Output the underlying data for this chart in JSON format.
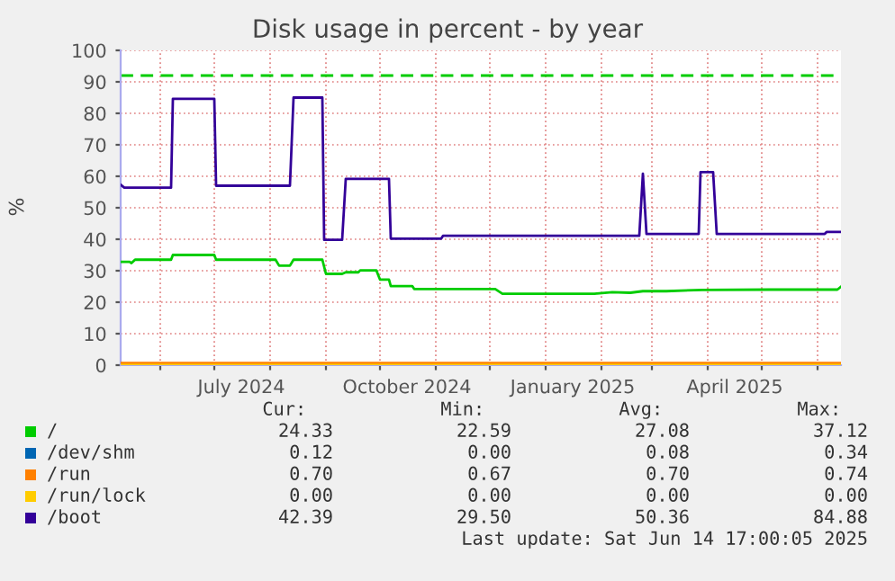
{
  "chart_data": {
    "type": "line",
    "title": "Disk usage in percent - by year",
    "ylabel": "%",
    "xlim": [
      "2024-05-10",
      "2025-06-14"
    ],
    "xticks": [
      {
        "value": "2024-06-01",
        "label": null
      },
      {
        "value": "2024-07-01",
        "label": null
      },
      {
        "value": "2024-07-16",
        "label": "July 2024"
      },
      {
        "value": "2024-08-01",
        "label": null
      },
      {
        "value": "2024-09-01",
        "label": null
      },
      {
        "value": "2024-10-01",
        "label": null
      },
      {
        "value": "2024-10-16",
        "label": "October 2024"
      },
      {
        "value": "2024-11-01",
        "label": null
      },
      {
        "value": "2024-12-01",
        "label": null
      },
      {
        "value": "2025-01-01",
        "label": null
      },
      {
        "value": "2025-01-16",
        "label": "January 2025"
      },
      {
        "value": "2025-02-01",
        "label": null
      },
      {
        "value": "2025-03-01",
        "label": null
      },
      {
        "value": "2025-04-01",
        "label": null
      },
      {
        "value": "2025-04-16",
        "label": "April 2025"
      },
      {
        "value": "2025-05-01",
        "label": null
      },
      {
        "value": "2025-06-01",
        "label": null
      }
    ],
    "ylim": [
      0,
      100
    ],
    "yticks": [
      0,
      10,
      20,
      30,
      40,
      50,
      60,
      70,
      80,
      90,
      100
    ],
    "grid": true,
    "legend": "bottom",
    "marker": "none",
    "line_style": "solid",
    "series": [
      {
        "name": "/",
        "color": "#00cc00",
        "x": [
          "2024-05-10",
          "2024-05-15",
          "2024-05-16",
          "2024-05-18",
          "2024-06-07",
          "2024-06-08",
          "2024-07-01",
          "2024-07-02",
          "2024-08-04",
          "2024-08-06",
          "2024-08-12",
          "2024-08-14",
          "2024-08-30",
          "2024-09-01",
          "2024-09-10",
          "2024-09-12",
          "2024-09-19",
          "2024-09-20",
          "2024-09-29",
          "2024-10-01",
          "2024-10-06",
          "2024-10-07",
          "2024-10-19",
          "2024-10-20",
          "2024-12-04",
          "2024-12-08",
          "2025-01-28",
          "2025-02-07",
          "2025-02-17",
          "2025-02-24",
          "2025-03-09",
          "2025-03-29",
          "2025-05-05",
          "2025-06-12",
          "2025-06-14"
        ],
        "values": [
          32.8,
          32.8,
          32.4,
          33.5,
          33.5,
          35.0,
          35.0,
          33.5,
          33.5,
          31.6,
          31.6,
          33.5,
          33.5,
          29.0,
          29.0,
          29.5,
          29.5,
          30.1,
          30.1,
          27.2,
          27.2,
          25.1,
          25.1,
          24.2,
          24.2,
          22.7,
          22.7,
          23.2,
          23.0,
          23.5,
          23.5,
          23.9,
          24.0,
          24.0,
          24.9
        ]
      },
      {
        "name": "/dev/shm",
        "color": "#0066b3"
      },
      {
        "name": "/run",
        "color": "#ff8000",
        "x": [
          "2024-05-10",
          "2025-06-14"
        ],
        "values": [
          0.7,
          0.7
        ]
      },
      {
        "name": "/run/lock",
        "color": "#ffcc00",
        "x": [
          "2024-05-10",
          "2025-06-14"
        ],
        "values": [
          0,
          0
        ]
      },
      {
        "name": "/boot",
        "color": "#330099",
        "x": [
          "2024-05-10",
          "2024-05-12",
          "2024-06-07",
          "2024-06-08",
          "2024-07-01",
          "2024-07-02",
          "2024-08-12",
          "2024-08-14",
          "2024-08-30",
          "2024-08-31",
          "2024-09-10",
          "2024-09-12",
          "2024-10-06",
          "2024-10-07",
          "2024-11-04",
          "2024-11-05",
          "2025-02-22",
          "2025-02-24",
          "2025-02-26",
          "2025-03-27",
          "2025-03-28",
          "2025-04-04",
          "2025-04-06",
          "2025-06-05",
          "2025-06-06",
          "2025-06-14"
        ],
        "values": [
          57.3,
          56.4,
          56.4,
          84.6,
          84.6,
          57.0,
          57.0,
          85.0,
          85.0,
          39.8,
          39.8,
          59.2,
          59.2,
          40.2,
          40.2,
          41.1,
          41.1,
          60.8,
          41.7,
          41.7,
          61.3,
          61.3,
          41.7,
          41.7,
          42.3,
          42.3
        ]
      }
    ],
    "ref_lines": [
      {
        "axis": "y",
        "value": 92,
        "label": null,
        "color": "#00cc00",
        "line_style": "dashed"
      }
    ],
    "annotations": [
      "Cur:",
      "Min:",
      "Avg:",
      "Max:",
      "24.33",
      "22.59",
      "27.08",
      "37.12",
      "0.12",
      "0.00",
      "0.08",
      "0.34",
      "0.70",
      "0.67",
      "0.70",
      "0.74",
      "0.00",
      "0.00",
      "0.00",
      "0.00",
      "42.39",
      "29.50",
      "50.36",
      "84.88",
      "Last update: Sat Jun 14 17:00:05 2025"
    ]
  }
}
